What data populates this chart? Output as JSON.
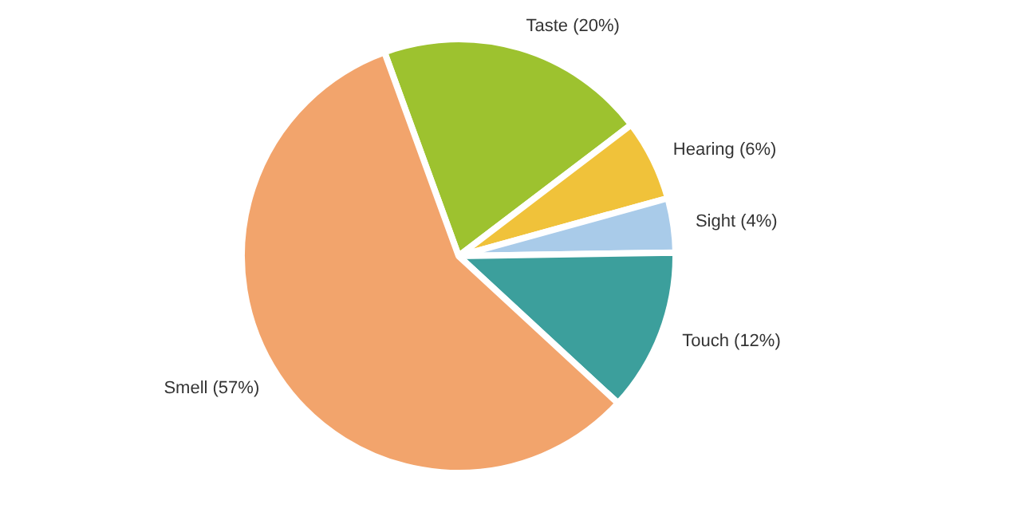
{
  "chart_data": {
    "type": "pie",
    "categories": [
      "Taste (20%)",
      "Hearing (6%)",
      "Sight (4%)",
      "Touch (12%)",
      "Smell (57%)"
    ],
    "values": [
      20,
      6,
      4,
      12,
      57
    ],
    "colors": [
      "#9dc22f",
      "#f0c23a",
      "#a9cbe9",
      "#3c9f9c",
      "#f2a46c"
    ]
  }
}
